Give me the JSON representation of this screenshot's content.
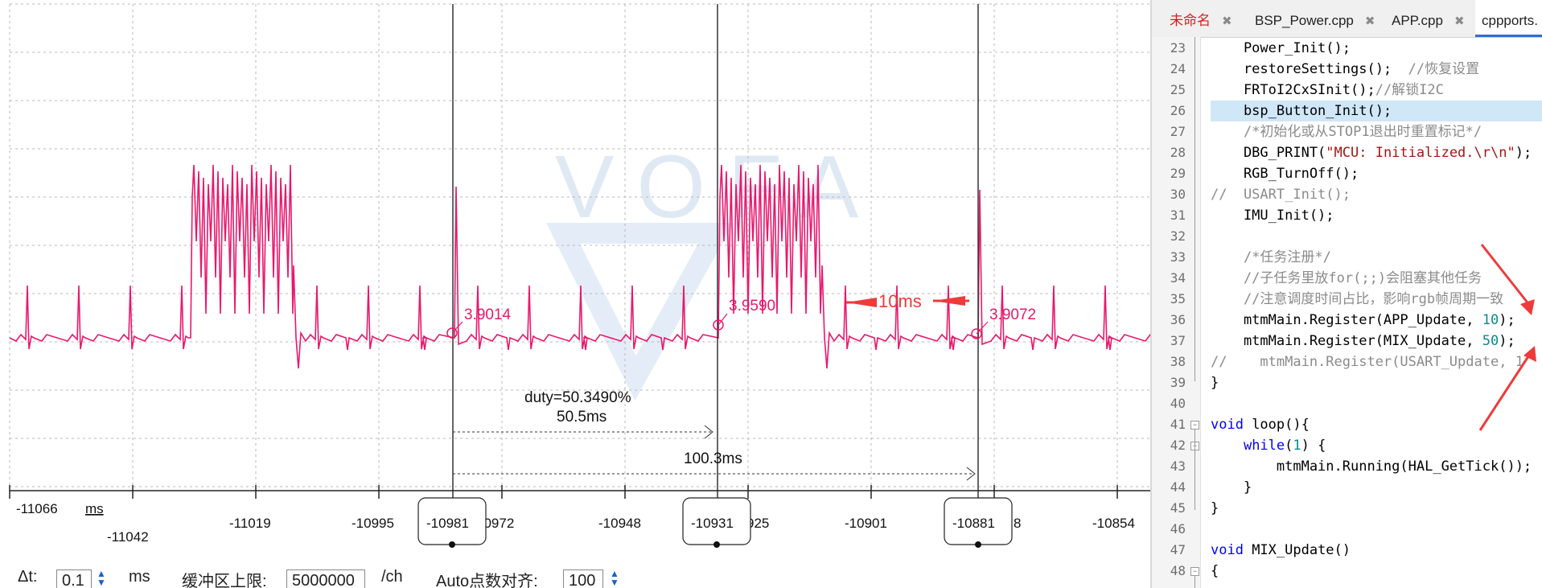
{
  "scope": {
    "watermark": "VOFA",
    "x_unit": "ms",
    "x_ticks": [
      "-11066",
      "-11042",
      "-11019",
      "-10995",
      "-10981",
      "10972",
      "-10948",
      "-10931",
      "925",
      "-10901",
      "-10881",
      "8",
      "-10854"
    ],
    "cursors": [
      {
        "time": "-10981",
        "value": "3.9014"
      },
      {
        "time": "-10931",
        "value": "3.9590"
      },
      {
        "time": "-10881",
        "value": "3.9072"
      }
    ],
    "annotation_period": "10ms",
    "measure_duty": "duty=50.3490%",
    "measure_high": "50.5ms",
    "measure_period": "100.3ms",
    "trace_color": "#e8186c"
  },
  "controls": {
    "dt_label": "Δt:",
    "dt_value": "0.1",
    "dt_unit": "ms",
    "buffer_label": "缓冲区上限:",
    "buffer_value": "5000000",
    "buffer_unit": "/ch",
    "auto_label": "Auto点数对齐:",
    "auto_value": "100"
  },
  "editor": {
    "tabs": [
      "未命名",
      "BSP_Power.cpp",
      "APP.cpp",
      "cppports."
    ],
    "line_numbers": [
      "23",
      "24",
      "25",
      "26",
      "27",
      "28",
      "29",
      "30",
      "31",
      "32",
      "33",
      "34",
      "35",
      "36",
      "37",
      "38",
      "39",
      "40",
      "41",
      "42",
      "43",
      "44",
      "45",
      "46",
      "47",
      "48"
    ],
    "code": {
      "l23": "    Power_Init();",
      "l24a": "    restoreSettings();  ",
      "l24b": "//恢复设置",
      "l25a": "    FRToI2CxSInit();",
      "l25b": "//解锁I2C",
      "l26": "    bsp_Button_Init();",
      "l27": "    /*初始化或从STOP1退出时重置标记*/",
      "l28a": "    DBG_PRINT(",
      "l28b": "\"MCU: Initialized.\\r\\n\"",
      "l28c": ");",
      "l29": "    RGB_TurnOff();",
      "l30": "//  USART_Init();",
      "l31": "    IMU_Init();",
      "l33": "    /*任务注册*/",
      "l34": "    //子任务里放for(;;)会阻塞其他任务",
      "l35": "    //注意调度时间占比，影响rgb帧周期一致",
      "l36a": "    mtmMain.Register(APP_Update, ",
      "l36b": "10",
      "l36c": ");",
      "l37a": "    mtmMain.Register(MIX_Update, ",
      "l37b": "50",
      "l37c": ");",
      "l38": "//    mtmMain.Register(USART_Update, 1",
      "l39": "}",
      "l41a": "void",
      "l41b": " loop(){",
      "l42a": "    ",
      "l42b": "while",
      "l42c": "(",
      "l42d": "1",
      "l42e": ") {",
      "l43": "        mtmMain.Running(HAL_GetTick());",
      "l44": "    }",
      "l45": "}",
      "l47a": "void",
      "l47b": " MIX_Update()",
      "l48": "{"
    }
  }
}
